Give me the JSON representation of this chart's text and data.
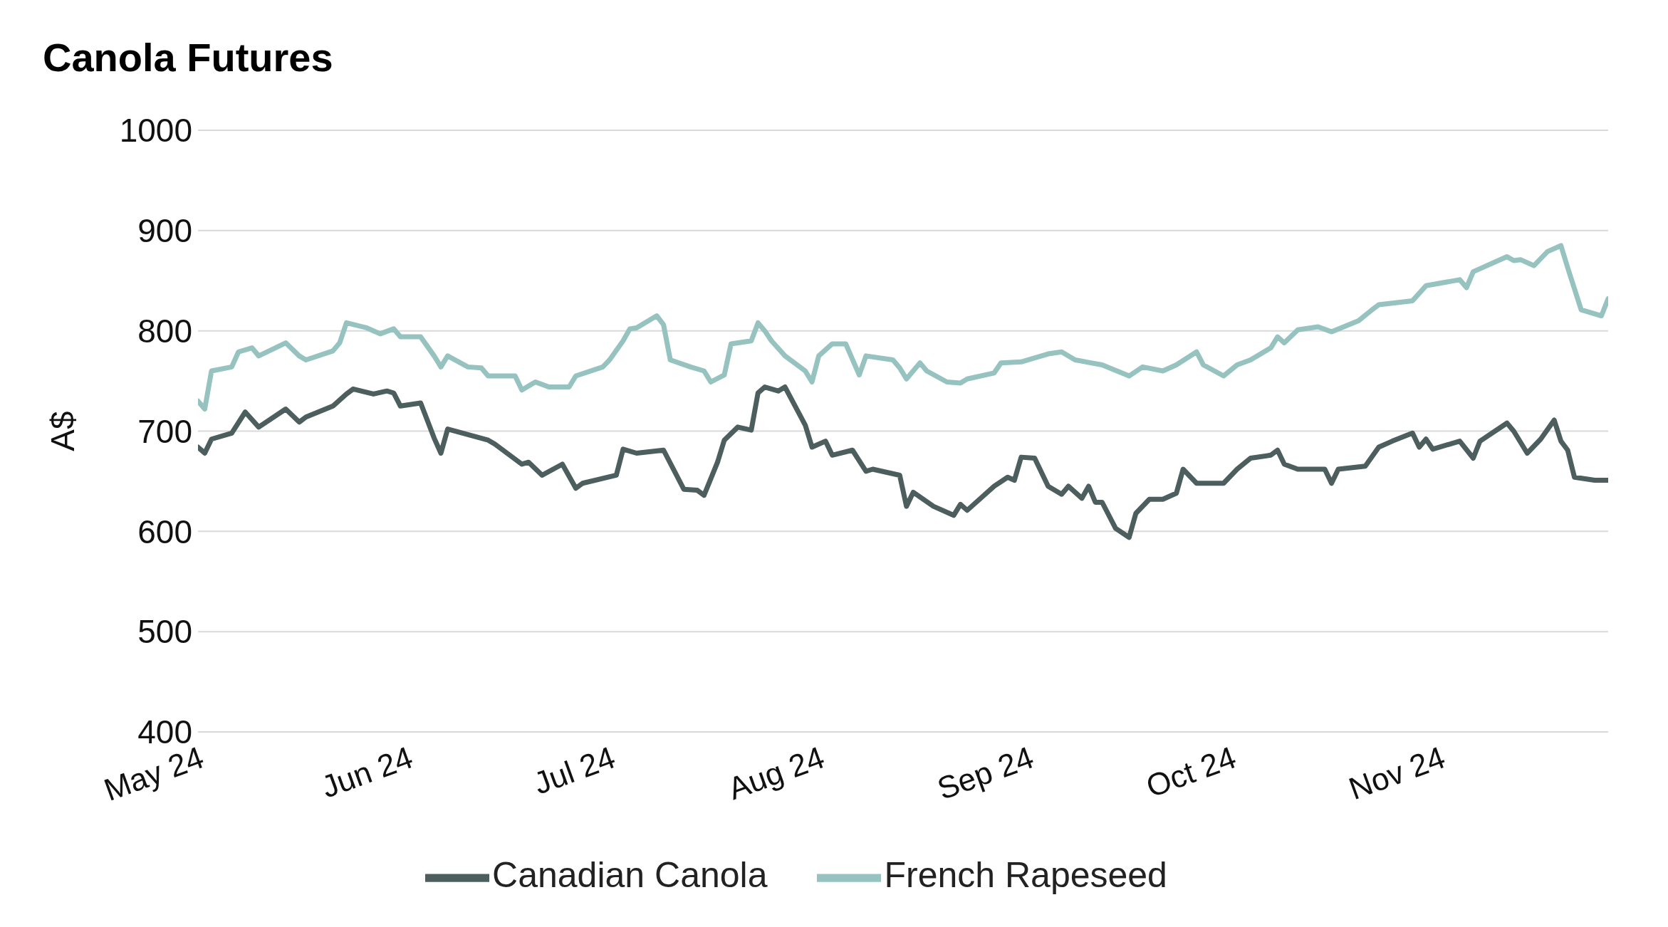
{
  "chart_data": {
    "type": "line",
    "title": "Canola Futures",
    "ylabel": "A$",
    "ylim": [
      400,
      1000
    ],
    "yticks": [
      400,
      500,
      600,
      700,
      800,
      900,
      1000
    ],
    "xlim": [
      "2024-05-01",
      "2024-11-26"
    ],
    "xticks": [
      {
        "value": "2024-05-01",
        "label": "May 24"
      },
      {
        "value": "2024-06-01",
        "label": "Jun 24"
      },
      {
        "value": "2024-07-01",
        "label": "Jul 24"
      },
      {
        "value": "2024-08-01",
        "label": "Aug 24"
      },
      {
        "value": "2024-09-01",
        "label": "Sep 24"
      },
      {
        "value": "2024-10-01",
        "label": "Oct 24"
      },
      {
        "value": "2024-11-01",
        "label": "Nov 24"
      }
    ],
    "grid": "y",
    "legend": "bottom",
    "marker": "none",
    "line_style": "solid",
    "series": [
      {
        "name": "Canadian Canola",
        "color": "#4d5e5e",
        "x": [
          "2024-05-01",
          "2024-05-02",
          "2024-05-03",
          "2024-05-06",
          "2024-05-08",
          "2024-05-10",
          "2024-05-14",
          "2024-05-16",
          "2024-05-17",
          "2024-05-21",
          "2024-05-23",
          "2024-05-24",
          "2024-05-27",
          "2024-05-29",
          "2024-05-30",
          "2024-05-31",
          "2024-06-03",
          "2024-06-05",
          "2024-06-06",
          "2024-06-07",
          "2024-06-13",
          "2024-06-14",
          "2024-06-18",
          "2024-06-19",
          "2024-06-21",
          "2024-06-24",
          "2024-06-26",
          "2024-06-27",
          "2024-07-02",
          "2024-07-03",
          "2024-07-05",
          "2024-07-09",
          "2024-07-12",
          "2024-07-14",
          "2024-07-15",
          "2024-07-17",
          "2024-07-18",
          "2024-07-20",
          "2024-07-22",
          "2024-07-23",
          "2024-07-24",
          "2024-07-26",
          "2024-07-27",
          "2024-07-30",
          "2024-07-31",
          "2024-08-02",
          "2024-08-03",
          "2024-08-06",
          "2024-08-08",
          "2024-08-09",
          "2024-08-13",
          "2024-08-14",
          "2024-08-15",
          "2024-08-18",
          "2024-08-21",
          "2024-08-22",
          "2024-08-23",
          "2024-08-27",
          "2024-08-29",
          "2024-08-30",
          "2024-08-31",
          "2024-09-02",
          "2024-09-04",
          "2024-09-06",
          "2024-09-07",
          "2024-09-09",
          "2024-09-10",
          "2024-09-11",
          "2024-09-12",
          "2024-09-14",
          "2024-09-16",
          "2024-09-17",
          "2024-09-19",
          "2024-09-21",
          "2024-09-23",
          "2024-09-24",
          "2024-09-26",
          "2024-09-30",
          "2024-10-02",
          "2024-10-04",
          "2024-10-07",
          "2024-10-08",
          "2024-10-09",
          "2024-10-11",
          "2024-10-15",
          "2024-10-16",
          "2024-10-17",
          "2024-10-21",
          "2024-10-23",
          "2024-10-25",
          "2024-10-28",
          "2024-10-29",
          "2024-10-30",
          "2024-10-31",
          "2024-11-04",
          "2024-11-06",
          "2024-11-07",
          "2024-11-11",
          "2024-11-12",
          "2024-11-14",
          "2024-11-16",
          "2024-11-18",
          "2024-11-19",
          "2024-11-20",
          "2024-11-21",
          "2024-11-24",
          "2024-11-26"
        ],
        "values": [
          684,
          678,
          692,
          698,
          719,
          704,
          722,
          709,
          714,
          725,
          737,
          742,
          737,
          740,
          738,
          725,
          728,
          693,
          678,
          702,
          691,
          687,
          667,
          669,
          656,
          667,
          643,
          648,
          656,
          682,
          678,
          681,
          642,
          641,
          636,
          669,
          691,
          704,
          701,
          738,
          744,
          740,
          744,
          706,
          684,
          690,
          676,
          681,
          660,
          662,
          656,
          625,
          639,
          625,
          616,
          627,
          621,
          645,
          654,
          651,
          674,
          673,
          645,
          637,
          645,
          633,
          645,
          629,
          629,
          603,
          594,
          618,
          632,
          632,
          638,
          662,
          648,
          648,
          662,
          673,
          676,
          681,
          667,
          662,
          662,
          648,
          662,
          665,
          684,
          690,
          698,
          684,
          692,
          682,
          690,
          673,
          690,
          708,
          700,
          678,
          692,
          711,
          690,
          681,
          654,
          651,
          651
        ]
      },
      {
        "name": "French Rapeseed",
        "color": "#96c3c0",
        "x": [
          "2024-05-01",
          "2024-05-02",
          "2024-05-03",
          "2024-05-06",
          "2024-05-07",
          "2024-05-09",
          "2024-05-10",
          "2024-05-14",
          "2024-05-16",
          "2024-05-17",
          "2024-05-21",
          "2024-05-22",
          "2024-05-23",
          "2024-05-26",
          "2024-05-28",
          "2024-05-30",
          "2024-05-31",
          "2024-06-03",
          "2024-06-05",
          "2024-06-06",
          "2024-06-07",
          "2024-06-10",
          "2024-06-12",
          "2024-06-13",
          "2024-06-17",
          "2024-06-18",
          "2024-06-20",
          "2024-06-22",
          "2024-06-25",
          "2024-06-26",
          "2024-06-30",
          "2024-07-01",
          "2024-07-03",
          "2024-07-04",
          "2024-07-05",
          "2024-07-08",
          "2024-07-09",
          "2024-07-10",
          "2024-07-13",
          "2024-07-15",
          "2024-07-16",
          "2024-07-18",
          "2024-07-19",
          "2024-07-22",
          "2024-07-23",
          "2024-07-24",
          "2024-07-25",
          "2024-07-27",
          "2024-07-30",
          "2024-07-31",
          "2024-08-01",
          "2024-08-03",
          "2024-08-05",
          "2024-08-07",
          "2024-08-08",
          "2024-08-12",
          "2024-08-13",
          "2024-08-14",
          "2024-08-16",
          "2024-08-17",
          "2024-08-20",
          "2024-08-22",
          "2024-08-23",
          "2024-08-27",
          "2024-08-28",
          "2024-08-31",
          "2024-09-04",
          "2024-09-06",
          "2024-09-08",
          "2024-09-12",
          "2024-09-16",
          "2024-09-18",
          "2024-09-21",
          "2024-09-23",
          "2024-09-26",
          "2024-09-27",
          "2024-09-30",
          "2024-10-02",
          "2024-10-04",
          "2024-10-07",
          "2024-10-08",
          "2024-10-09",
          "2024-10-11",
          "2024-10-14",
          "2024-10-16",
          "2024-10-20",
          "2024-10-22",
          "2024-10-23",
          "2024-10-28",
          "2024-10-30",
          "2024-11-04",
          "2024-11-05",
          "2024-11-06",
          "2024-11-11",
          "2024-11-12",
          "2024-11-13",
          "2024-11-15",
          "2024-11-17",
          "2024-11-19",
          "2024-11-20",
          "2024-11-22",
          "2024-11-25",
          "2024-11-26"
        ],
        "values": [
          730,
          722,
          760,
          764,
          779,
          783,
          775,
          788,
          775,
          771,
          780,
          788,
          808,
          803,
          797,
          802,
          794,
          794,
          775,
          764,
          775,
          764,
          763,
          755,
          755,
          741,
          749,
          744,
          744,
          755,
          764,
          771,
          790,
          802,
          803,
          815,
          806,
          771,
          764,
          760,
          749,
          756,
          787,
          790,
          808,
          800,
          790,
          775,
          760,
          749,
          775,
          787,
          787,
          756,
          775,
          771,
          763,
          752,
          768,
          760,
          749,
          748,
          752,
          758,
          768,
          769,
          777,
          779,
          771,
          766,
          755,
          764,
          760,
          766,
          779,
          766,
          755,
          766,
          771,
          783,
          794,
          788,
          801,
          804,
          799,
          810,
          821,
          826,
          830,
          845,
          851,
          843,
          859,
          874,
          870,
          871,
          865,
          879,
          885,
          863,
          821,
          815,
          832
        ]
      }
    ]
  }
}
